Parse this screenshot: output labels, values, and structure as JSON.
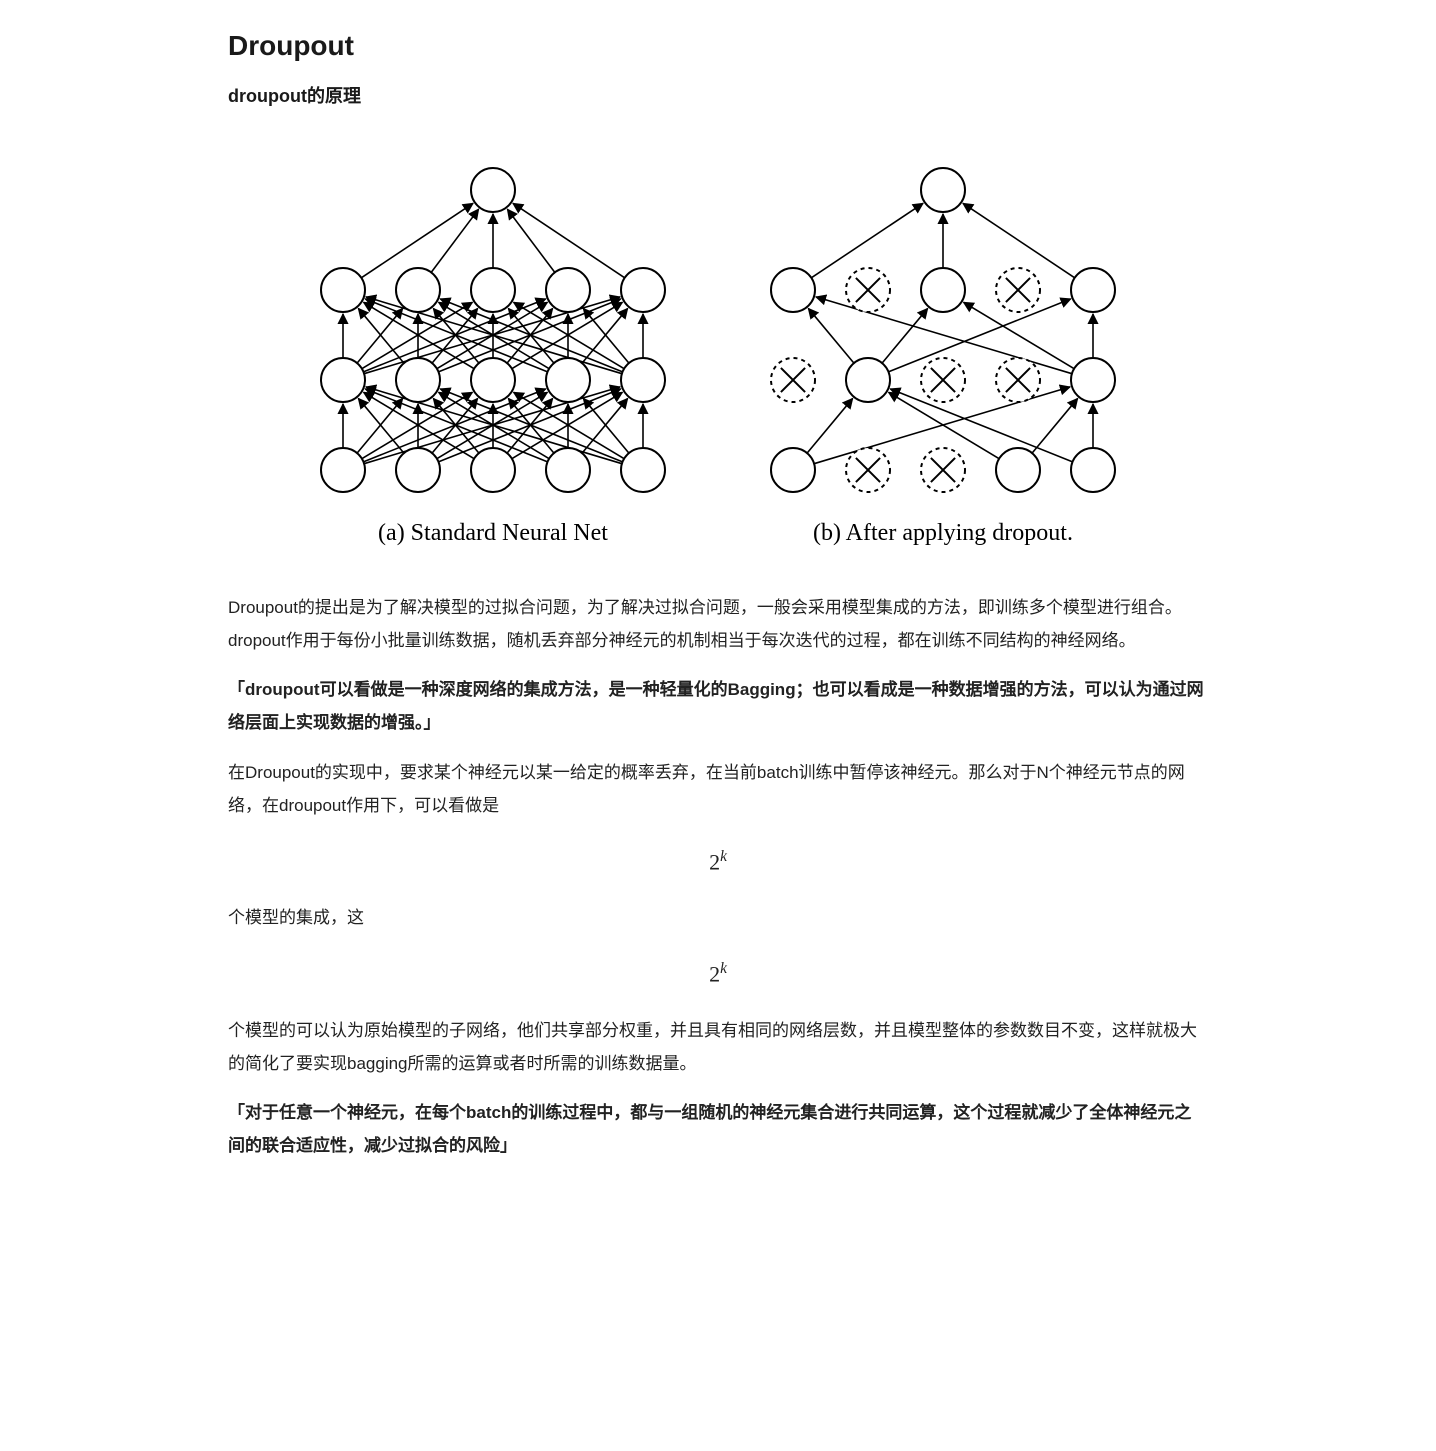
{
  "title": "Droupout",
  "subtitle": "droupout的原理",
  "figure": {
    "caption_a": "(a) Standard Neural Net",
    "caption_b": "(b) After applying dropout.",
    "node_radius": 22,
    "node_stroke": "#000000",
    "node_fill": "#ffffff",
    "stroke_width": 2,
    "arrow_color": "#000000",
    "net_a": {
      "layers": [
        5,
        5,
        5,
        1
      ],
      "fully_connected": true
    },
    "net_b": {
      "layers": [
        [
          {
            "dropped": false
          },
          {
            "dropped": true
          },
          {
            "dropped": true
          },
          {
            "dropped": false
          },
          {
            "dropped": false
          }
        ],
        [
          {
            "dropped": true
          },
          {
            "dropped": false
          },
          {
            "dropped": true
          },
          {
            "dropped": true
          },
          {
            "dropped": false
          }
        ],
        [
          {
            "dropped": false
          },
          {
            "dropped": true
          },
          {
            "dropped": false
          },
          {
            "dropped": true
          },
          {
            "dropped": false
          }
        ],
        [
          {
            "dropped": false
          }
        ]
      ],
      "edges": [
        [
          0,
          0,
          1,
          1
        ],
        [
          0,
          0,
          1,
          4
        ],
        [
          0,
          3,
          1,
          1
        ],
        [
          0,
          3,
          1,
          4
        ],
        [
          0,
          4,
          1,
          1
        ],
        [
          0,
          4,
          1,
          4
        ],
        [
          1,
          1,
          2,
          0
        ],
        [
          1,
          1,
          2,
          2
        ],
        [
          1,
          1,
          2,
          4
        ],
        [
          1,
          4,
          2,
          0
        ],
        [
          1,
          4,
          2,
          2
        ],
        [
          1,
          4,
          2,
          4
        ],
        [
          2,
          0,
          3,
          0
        ],
        [
          2,
          2,
          3,
          0
        ],
        [
          2,
          4,
          3,
          0
        ]
      ]
    }
  },
  "paragraphs": {
    "p1": "Droupout的提出是为了解决模型的过拟合问题，为了解决过拟合问题，一般会采用模型集成的方法，即训练多个模型进行组合。dropout作用于每份小批量训练数据，随机丢弃部分神经元的机制相当于每次迭代的过程，都在训练不同结构的神经网络。",
    "p2": "「droupout可以看做是一种深度网络的集成方法，是一种轻量化的Bagging；也可以看成是一种数据增强的方法，可以认为通过网络层面上实现数据的增强。」",
    "p3": "在Droupout的实现中，要求某个神经元以某一给定的概率丢弃，在当前batch训练中暂停该神经元。那么对于N个神经元节点的网络，在droupout作用下，可以看做是",
    "p4": " 个模型的集成，这",
    "p5": " 个模型的可以认为原始模型的子网络，他们共享部分权重，并且具有相同的网络层数，并且模型整体的参数数目不变，这样就极大的简化了要实现bagging所需的运算或者时所需的训练数据量。",
    "p6": "「对于任意一个神经元，在每个batch的训练过程中，都与一组随机的神经元集合进行共同运算，这个过程就减少了全体神经元之间的联合适应性，减少过拟合的风险」"
  },
  "formulas": {
    "f1_base": "2",
    "f1_exp": "k",
    "f2_base": "2",
    "f2_exp": "k"
  },
  "style": {
    "text_color": "#1a1a1a",
    "bg_color": "#ffffff",
    "body_fontsize": 17,
    "title_fontsize": 28,
    "caption_fontsize": 24
  }
}
